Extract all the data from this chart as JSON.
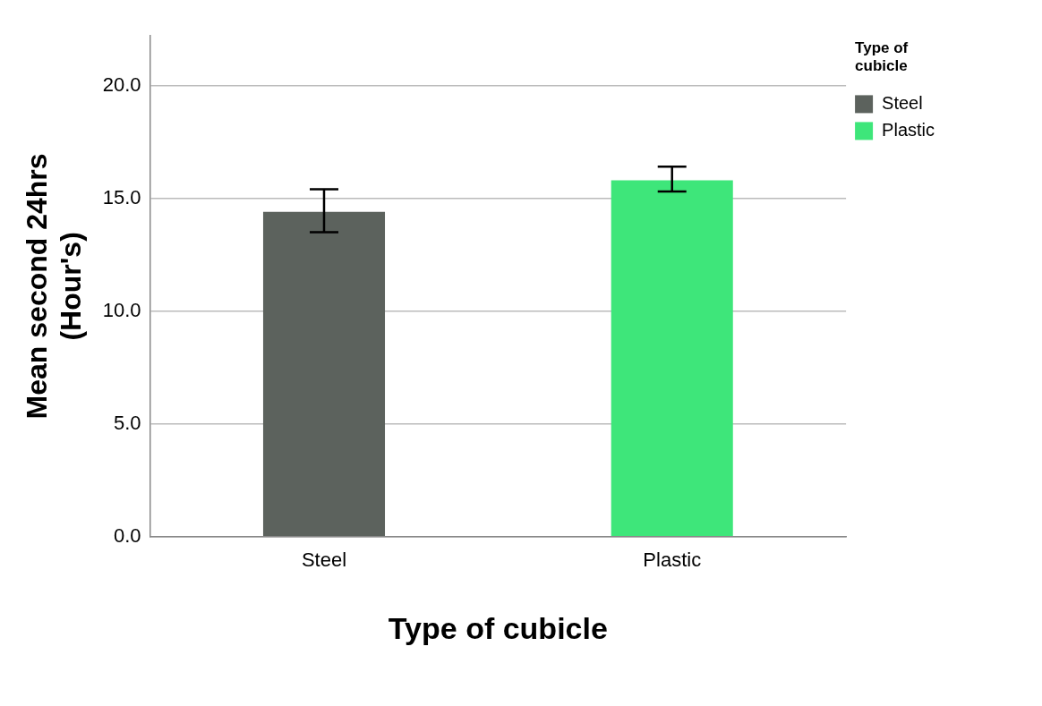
{
  "chart_data": {
    "type": "bar",
    "xlabel": "Type of cubicle",
    "ylabel": "Mean second 24hrs\n(Hour's)",
    "legend_title": "Type of cubicle",
    "categories": [
      "Steel",
      "Plastic"
    ],
    "series": [
      {
        "name": "Steel",
        "color": "#5c625d",
        "values": [
          14.4,
          null
        ],
        "errors": [
          [
            13.5,
            15.4
          ],
          null
        ]
      },
      {
        "name": "Plastic",
        "color": "#3ee67a",
        "values": [
          null,
          15.8
        ],
        "errors": [
          null,
          [
            15.3,
            16.4
          ]
        ]
      }
    ],
    "ylim": [
      0,
      22.2
    ],
    "yticks": [
      {
        "value": 0,
        "label": "0.0"
      },
      {
        "value": 5,
        "label": "5.0"
      },
      {
        "value": 10,
        "label": "10.0"
      },
      {
        "value": 15,
        "label": "15.0"
      },
      {
        "value": 20,
        "label": "20.0"
      }
    ],
    "grid": "y",
    "legend": "right"
  }
}
